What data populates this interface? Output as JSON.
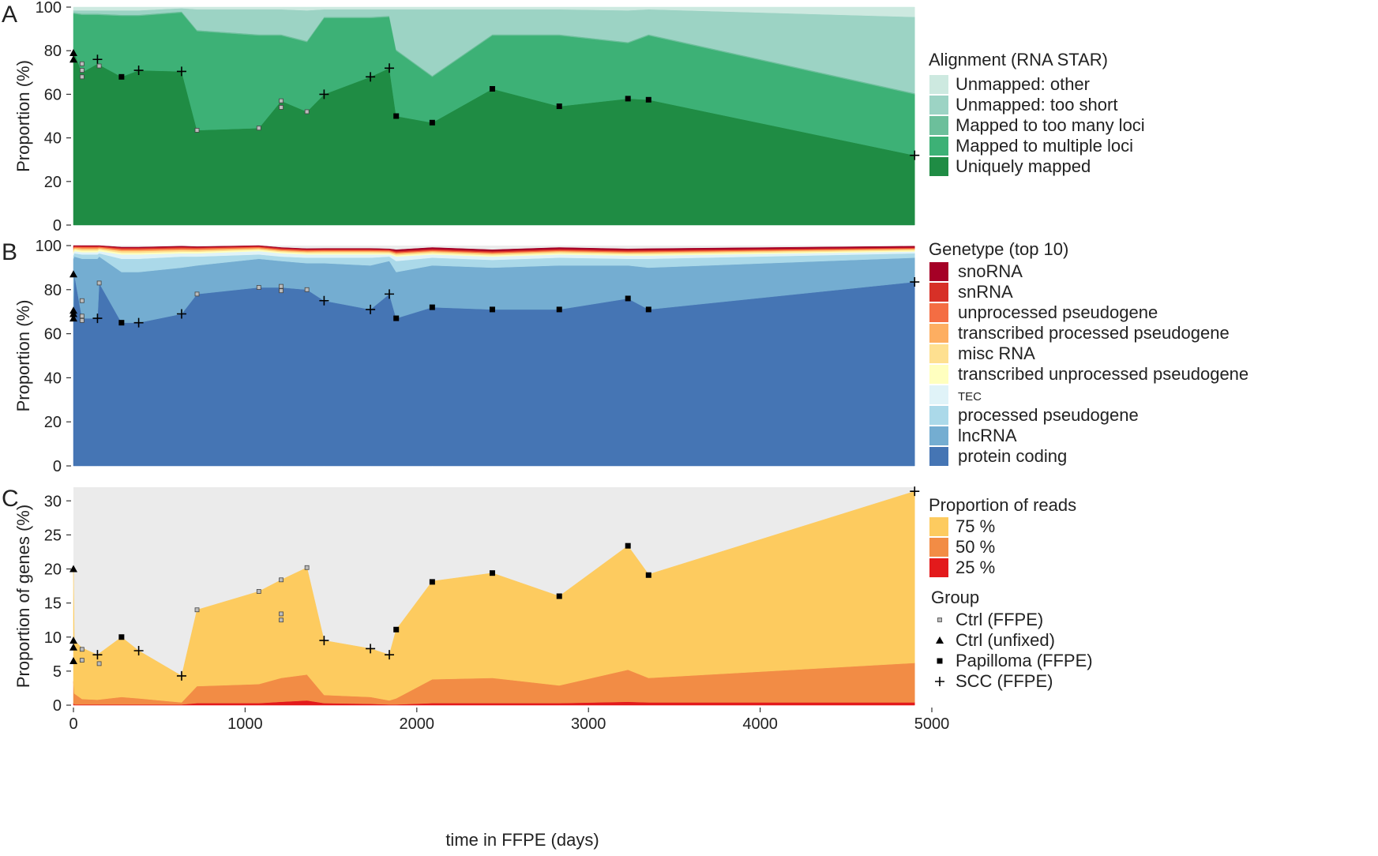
{
  "chart_data": [
    {
      "panel": "A",
      "type": "area",
      "ylabel": "Proportion (%)",
      "ylim": [
        0,
        100
      ],
      "yticks": [
        "0",
        "20",
        "40",
        "60",
        "80",
        "100"
      ],
      "xlim": [
        0,
        4900
      ],
      "stacked": true,
      "x": [
        0,
        5,
        50,
        140,
        280,
        380,
        630,
        720,
        1080,
        1210,
        1360,
        1460,
        1730,
        1840,
        1880,
        2090,
        2440,
        2830,
        3230,
        3350,
        4900
      ],
      "legend_title": "Alignment (RNA STAR)",
      "series": [
        {
          "name": "Uniquely mapped",
          "color": "#1f8c44",
          "values": [
            76,
            79,
            70,
            74,
            68,
            71,
            70.5,
            43.5,
            44.5,
            57,
            52,
            60,
            68,
            72,
            50,
            47,
            62.5,
            54.5,
            58,
            57.5,
            32
          ]
        },
        {
          "name": "Mapped to multiple loci",
          "color": "#3db176",
          "values": [
            21,
            18,
            26.5,
            22.5,
            28,
            25,
            27,
            45.5,
            42.5,
            30,
            32,
            35,
            27,
            23.5,
            30,
            21,
            24.5,
            32.5,
            25.5,
            29.5,
            28
          ]
        },
        {
          "name": "Mapped to too many loci",
          "color": "#6cbf9b",
          "values": [
            0.5,
            0.5,
            0.5,
            0.5,
            0.5,
            0.5,
            0.5,
            0.5,
            0.5,
            0.5,
            0.5,
            0.5,
            0.5,
            0.5,
            0.5,
            0.5,
            0.5,
            0.5,
            0.5,
            0.5,
            0.5
          ]
        },
        {
          "name": "Unmapped: too short",
          "color": "#9cd3c4",
          "values": [
            1,
            1,
            1.5,
            1.5,
            2,
            2,
            1.5,
            9.5,
            11.5,
            11.5,
            14,
            3.5,
            3.5,
            3,
            18.5,
            30.5,
            11.5,
            11.5,
            14.5,
            11.5,
            35
          ]
        },
        {
          "name": "Unmapped: other",
          "color": "#cde9e0",
          "values": [
            1.5,
            1.5,
            1.5,
            1.5,
            1.5,
            1.5,
            1.5,
            1,
            1,
            1,
            1.5,
            1,
            1,
            1,
            1,
            1,
            1,
            1,
            1.5,
            1,
            4.5
          ]
        }
      ]
    },
    {
      "panel": "B",
      "type": "area",
      "ylabel": "Proportion (%)",
      "ylim": [
        0,
        100
      ],
      "yticks": [
        "0",
        "20",
        "40",
        "60",
        "80",
        "100"
      ],
      "xlim": [
        0,
        4900
      ],
      "stacked": true,
      "x": [
        0,
        5,
        50,
        140,
        150,
        280,
        380,
        630,
        720,
        1080,
        1210,
        1360,
        1460,
        1730,
        1840,
        1880,
        2090,
        2440,
        2830,
        3230,
        3350,
        4900
      ],
      "legend_title": "Genetype (top 10)",
      "series": [
        {
          "name": "protein coding",
          "color": "#4575b4",
          "values": [
            68,
            87,
            67,
            67,
            83,
            65,
            65,
            69,
            78,
            81,
            81,
            80,
            75,
            71,
            78,
            67,
            72,
            71,
            71,
            76,
            71,
            83.5
          ]
        },
        {
          "name": "lncRNA",
          "color": "#74add1",
          "values": [
            26,
            8,
            27,
            27,
            12,
            23,
            23,
            21,
            13,
            13,
            12,
            12,
            17,
            20,
            15,
            21,
            19,
            19,
            20,
            15,
            19,
            11
          ]
        },
        {
          "name": "processed pseudogene",
          "color": "#abd9e9",
          "values": [
            1.5,
            1.5,
            2,
            2,
            1.5,
            6,
            6,
            5,
            4,
            2,
            2,
            2.5,
            2.5,
            3.5,
            2,
            5,
            3.5,
            3.5,
            3.5,
            3,
            4,
            2
          ]
        },
        {
          "name": "TEC",
          "color": "#e0f3f8",
          "values": [
            1,
            1,
            1,
            1,
            1,
            2,
            2,
            1.5,
            1.5,
            1.5,
            1.5,
            1.5,
            1.5,
            1.5,
            1,
            2,
            1.5,
            1.5,
            1.5,
            1.5,
            1.5,
            0.8
          ]
        },
        {
          "name": "transcribed unprocessed pseudogene",
          "color": "#ffffbf",
          "values": [
            0.7,
            0.7,
            0.7,
            0.7,
            0.7,
            0.7,
            0.7,
            0.7,
            0.7,
            0.6,
            0.6,
            0.6,
            0.6,
            0.6,
            0.6,
            0.6,
            0.6,
            0.6,
            0.6,
            0.6,
            0.6,
            0.5
          ]
        },
        {
          "name": "misc RNA",
          "color": "#fee090",
          "values": [
            0.8,
            0.5,
            0.7,
            0.7,
            0.5,
            0.8,
            0.8,
            0.7,
            0.6,
            0.5,
            0.5,
            0.5,
            0.6,
            0.6,
            0.5,
            0.6,
            0.6,
            0.6,
            0.6,
            0.5,
            0.6,
            0.5
          ]
        },
        {
          "name": "transcribed processed pseudogene",
          "color": "#fdae61",
          "values": [
            0.5,
            0.4,
            0.5,
            0.5,
            0.4,
            0.5,
            0.5,
            0.5,
            0.5,
            0.4,
            0.4,
            0.4,
            0.4,
            0.4,
            0.4,
            0.4,
            0.4,
            0.4,
            0.4,
            0.4,
            0.4,
            0.3
          ]
        },
        {
          "name": "unprocessed pseudogene",
          "color": "#f46d43",
          "values": [
            0.5,
            0.4,
            0.5,
            0.5,
            0.4,
            0.5,
            0.5,
            0.5,
            0.5,
            0.4,
            0.4,
            0.4,
            0.4,
            0.4,
            0.4,
            0.4,
            0.4,
            0.4,
            0.4,
            0.4,
            0.4,
            0.3
          ]
        },
        {
          "name": "snRNA",
          "color": "#d73027",
          "values": [
            0.6,
            0.3,
            0.4,
            0.4,
            0.3,
            0.5,
            0.5,
            0.5,
            0.4,
            0.4,
            0.4,
            0.4,
            0.4,
            0.4,
            0.3,
            0.5,
            0.5,
            0.5,
            0.5,
            0.5,
            0.5,
            0.3
          ]
        },
        {
          "name": "snoRNA",
          "color": "#a50026",
          "values": [
            0.4,
            0.2,
            0.2,
            0.2,
            0.3,
            0.3,
            0.3,
            0.3,
            0.3,
            0.3,
            0.3,
            0.3,
            0.3,
            0.3,
            0.3,
            0.6,
            0.6,
            0.6,
            0.6,
            0.6,
            0.6,
            0.5
          ]
        }
      ]
    },
    {
      "panel": "C",
      "type": "area",
      "ylabel": "Proportion of genes (%)",
      "xlabel": "time in FFPE (days)",
      "ylim": [
        0,
        32
      ],
      "yticks": [
        "0",
        "5",
        "10",
        "15",
        "20",
        "25",
        "30"
      ],
      "xlim": [
        0,
        4900
      ],
      "xticks": [
        "0",
        "1000",
        "2000",
        "3000",
        "4000",
        "5000"
      ],
      "stacked": true,
      "x": [
        0,
        5,
        50,
        140,
        280,
        380,
        630,
        720,
        1080,
        1210,
        1360,
        1460,
        1730,
        1840,
        1880,
        2090,
        2440,
        2830,
        3230,
        3350,
        4900
      ],
      "legend_title": "Proportion of reads",
      "series": [
        {
          "name": "25 %",
          "color": "#e31a1c",
          "values": [
            0.3,
            0.1,
            0.1,
            0.1,
            0.1,
            0.1,
            0.1,
            0.3,
            0.3,
            0.5,
            0.7,
            0.3,
            0.2,
            0.1,
            0.1,
            0.3,
            0.3,
            0.3,
            0.5,
            0.4,
            0.4
          ]
        },
        {
          "name": "50 %",
          "color": "#f28c45",
          "values": [
            3.2,
            1.6,
            0.8,
            0.7,
            1.1,
            0.9,
            0.3,
            2.5,
            2.8,
            3.5,
            3.8,
            1.2,
            1,
            0.6,
            0.9,
            3.5,
            3.7,
            2.6,
            4.7,
            3.6,
            5.8
          ]
        },
        {
          "name": "75 %",
          "color": "#fdcb5f",
          "values": [
            16.5,
            7.8,
            7.5,
            6.6,
            8.8,
            7,
            3.9,
            11.2,
            13.6,
            14.4,
            15.7,
            8,
            7.1,
            6.7,
            10.1,
            14.4,
            15.4,
            13.1,
            18.2,
            15.2,
            25.2
          ]
        }
      ]
    }
  ],
  "markers": {
    "A": [
      {
        "x": 0,
        "y": 76,
        "g": "Ctrl (unfixed)"
      },
      {
        "x": 0,
        "y": 79,
        "g": "Ctrl (unfixed)"
      },
      {
        "x": 50,
        "y": 68,
        "g": "Ctrl (FFPE)"
      },
      {
        "x": 50,
        "y": 71,
        "g": "Ctrl (FFPE)"
      },
      {
        "x": 50,
        "y": 74,
        "g": "Ctrl (FFPE)"
      },
      {
        "x": 140,
        "y": 76,
        "g": "SCC (FFPE)"
      },
      {
        "x": 150,
        "y": 73,
        "g": "Ctrl (FFPE)"
      },
      {
        "x": 280,
        "y": 68,
        "g": "Papilloma (FFPE)"
      },
      {
        "x": 380,
        "y": 71,
        "g": "SCC (FFPE)"
      },
      {
        "x": 630,
        "y": 70.5,
        "g": "SCC (FFPE)"
      },
      {
        "x": 720,
        "y": 43.5,
        "g": "Ctrl (FFPE)"
      },
      {
        "x": 1080,
        "y": 44.5,
        "g": "Ctrl (FFPE)"
      },
      {
        "x": 1210,
        "y": 54,
        "g": "Ctrl (FFPE)"
      },
      {
        "x": 1210,
        "y": 57,
        "g": "Ctrl (FFPE)"
      },
      {
        "x": 1360,
        "y": 52,
        "g": "Ctrl (FFPE)"
      },
      {
        "x": 1460,
        "y": 60,
        "g": "SCC (FFPE)"
      },
      {
        "x": 1730,
        "y": 68,
        "g": "SCC (FFPE)"
      },
      {
        "x": 1840,
        "y": 72,
        "g": "SCC (FFPE)"
      },
      {
        "x": 1880,
        "y": 50,
        "g": "Papilloma (FFPE)"
      },
      {
        "x": 2090,
        "y": 47,
        "g": "Papilloma (FFPE)"
      },
      {
        "x": 2440,
        "y": 62.5,
        "g": "Papilloma (FFPE)"
      },
      {
        "x": 2830,
        "y": 54.5,
        "g": "Papilloma (FFPE)"
      },
      {
        "x": 3230,
        "y": 58,
        "g": "Papilloma (FFPE)"
      },
      {
        "x": 3350,
        "y": 57.5,
        "g": "Papilloma (FFPE)"
      },
      {
        "x": 4900,
        "y": 32,
        "g": "SCC (FFPE)"
      }
    ],
    "B": [
      {
        "x": 0,
        "y": 67,
        "g": "Ctrl (unfixed)"
      },
      {
        "x": 0,
        "y": 69,
        "g": "Ctrl (unfixed)"
      },
      {
        "x": 0,
        "y": 70.5,
        "g": "Ctrl (unfixed)"
      },
      {
        "x": 0,
        "y": 87,
        "g": "Ctrl (unfixed)"
      },
      {
        "x": 50,
        "y": 66,
        "g": "Ctrl (FFPE)"
      },
      {
        "x": 50,
        "y": 68,
        "g": "Ctrl (FFPE)"
      },
      {
        "x": 50,
        "y": 75,
        "g": "Ctrl (FFPE)"
      },
      {
        "x": 140,
        "y": 67,
        "g": "SCC (FFPE)"
      },
      {
        "x": 150,
        "y": 83,
        "g": "Ctrl (FFPE)"
      },
      {
        "x": 280,
        "y": 65,
        "g": "Papilloma (FFPE)"
      },
      {
        "x": 380,
        "y": 65,
        "g": "SCC (FFPE)"
      },
      {
        "x": 630,
        "y": 69,
        "g": "SCC (FFPE)"
      },
      {
        "x": 720,
        "y": 78,
        "g": "Ctrl (FFPE)"
      },
      {
        "x": 1080,
        "y": 81,
        "g": "Ctrl (FFPE)"
      },
      {
        "x": 1210,
        "y": 79.5,
        "g": "Ctrl (FFPE)"
      },
      {
        "x": 1210,
        "y": 81.5,
        "g": "Ctrl (FFPE)"
      },
      {
        "x": 1360,
        "y": 80,
        "g": "Ctrl (FFPE)"
      },
      {
        "x": 1460,
        "y": 75,
        "g": "SCC (FFPE)"
      },
      {
        "x": 1730,
        "y": 71,
        "g": "SCC (FFPE)"
      },
      {
        "x": 1840,
        "y": 78,
        "g": "SCC (FFPE)"
      },
      {
        "x": 1880,
        "y": 67,
        "g": "Papilloma (FFPE)"
      },
      {
        "x": 2090,
        "y": 72,
        "g": "Papilloma (FFPE)"
      },
      {
        "x": 2440,
        "y": 71,
        "g": "Papilloma (FFPE)"
      },
      {
        "x": 2830,
        "y": 71,
        "g": "Papilloma (FFPE)"
      },
      {
        "x": 3230,
        "y": 76,
        "g": "Papilloma (FFPE)"
      },
      {
        "x": 3350,
        "y": 71,
        "g": "Papilloma (FFPE)"
      },
      {
        "x": 4900,
        "y": 83.5,
        "g": "SCC (FFPE)"
      }
    ],
    "C": [
      {
        "x": 0,
        "y": 6.5,
        "g": "Ctrl (unfixed)"
      },
      {
        "x": 0,
        "y": 8.5,
        "g": "Ctrl (unfixed)"
      },
      {
        "x": 0,
        "y": 9.5,
        "g": "Ctrl (unfixed)"
      },
      {
        "x": 0,
        "y": 20,
        "g": "Ctrl (unfixed)"
      },
      {
        "x": 50,
        "y": 6.6,
        "g": "Ctrl (FFPE)"
      },
      {
        "x": 50,
        "y": 8.2,
        "g": "Ctrl (FFPE)"
      },
      {
        "x": 140,
        "y": 7.4,
        "g": "SCC (FFPE)"
      },
      {
        "x": 150,
        "y": 6.1,
        "g": "Ctrl (FFPE)"
      },
      {
        "x": 280,
        "y": 10,
        "g": "Papilloma (FFPE)"
      },
      {
        "x": 380,
        "y": 8,
        "g": "SCC (FFPE)"
      },
      {
        "x": 630,
        "y": 4.3,
        "g": "SCC (FFPE)"
      },
      {
        "x": 720,
        "y": 14,
        "g": "Ctrl (FFPE)"
      },
      {
        "x": 1080,
        "y": 16.7,
        "g": "Ctrl (FFPE)"
      },
      {
        "x": 1210,
        "y": 12.5,
        "g": "Ctrl (FFPE)"
      },
      {
        "x": 1210,
        "y": 13.4,
        "g": "Ctrl (FFPE)"
      },
      {
        "x": 1210,
        "y": 18.4,
        "g": "Ctrl (FFPE)"
      },
      {
        "x": 1360,
        "y": 20.2,
        "g": "Ctrl (FFPE)"
      },
      {
        "x": 1460,
        "y": 9.5,
        "g": "SCC (FFPE)"
      },
      {
        "x": 1730,
        "y": 8.3,
        "g": "SCC (FFPE)"
      },
      {
        "x": 1840,
        "y": 7.4,
        "g": "SCC (FFPE)"
      },
      {
        "x": 1880,
        "y": 11.1,
        "g": "Papilloma (FFPE)"
      },
      {
        "x": 2090,
        "y": 18.1,
        "g": "Papilloma (FFPE)"
      },
      {
        "x": 2440,
        "y": 19.4,
        "g": "Papilloma (FFPE)"
      },
      {
        "x": 2830,
        "y": 16,
        "g": "Papilloma (FFPE)"
      },
      {
        "x": 3230,
        "y": 23.4,
        "g": "Papilloma (FFPE)"
      },
      {
        "x": 3350,
        "y": 19.1,
        "g": "Papilloma (FFPE)"
      },
      {
        "x": 4900,
        "y": 31.4,
        "g": "SCC (FFPE)"
      }
    ]
  },
  "groups_legend": {
    "title": "Group",
    "items": [
      {
        "name": "Ctrl (FFPE)",
        "symbol": "ctrl-ffpe-square"
      },
      {
        "name": "Ctrl (unfixed)",
        "symbol": "triangle"
      },
      {
        "name": "Papilloma (FFPE)",
        "symbol": "square"
      },
      {
        "name": "SCC (FFPE)",
        "symbol": "plus"
      }
    ]
  },
  "background_color": "#ebebeb"
}
